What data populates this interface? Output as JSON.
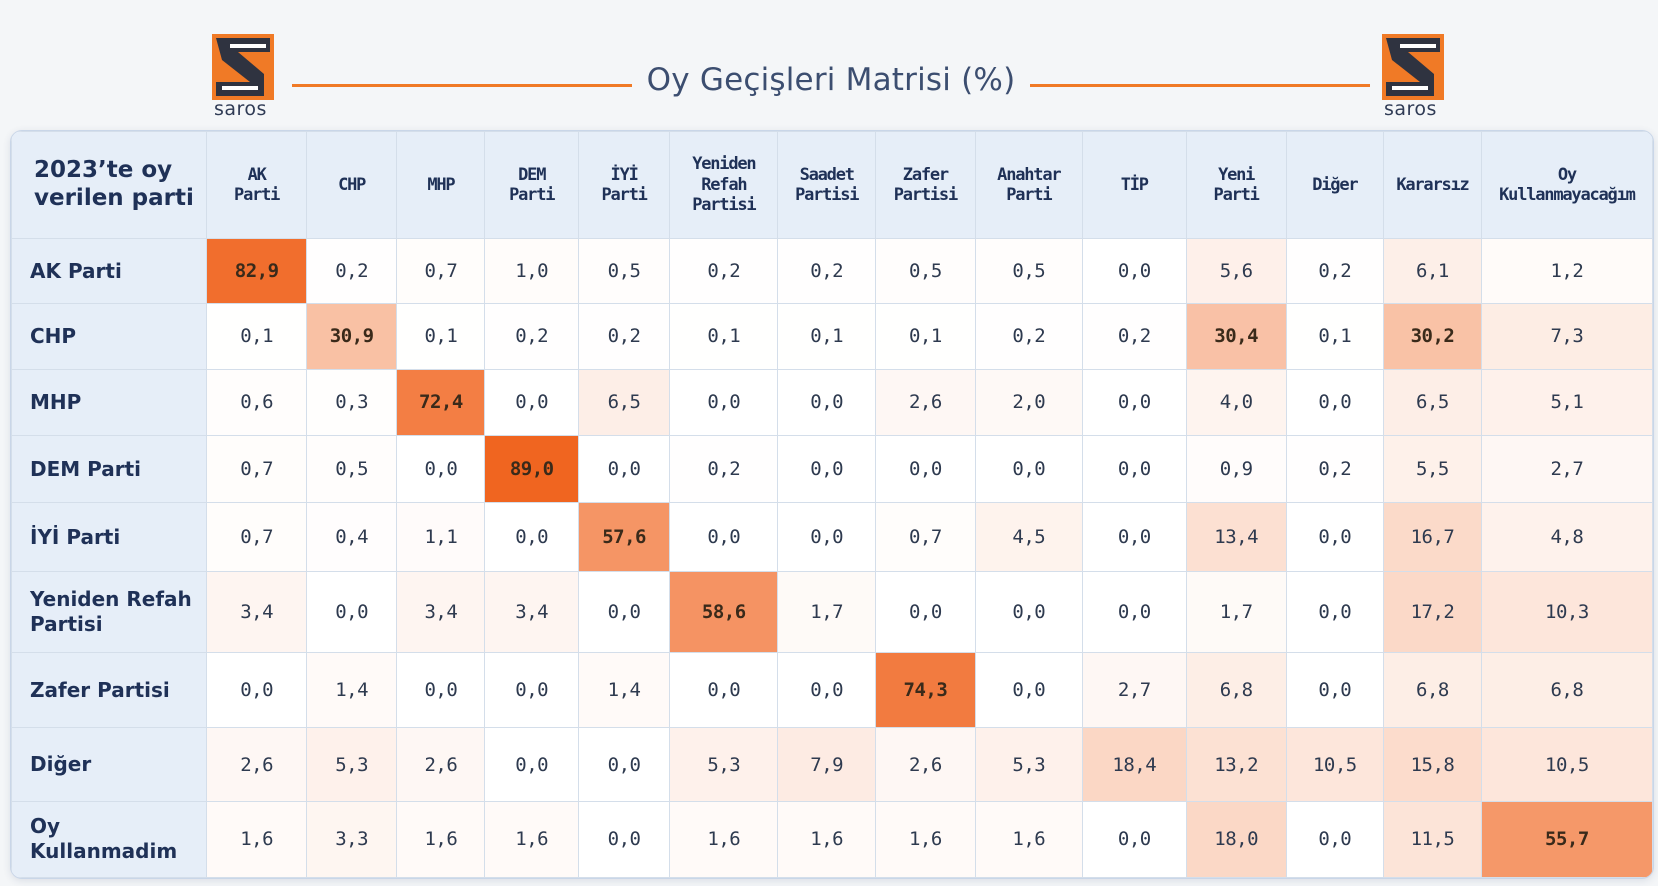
{
  "brand": {
    "name": "saros",
    "colors": {
      "orange": "#f07a26",
      "dark": "#2f3340"
    }
  },
  "title": "Oy Geçişleri Matrisi (%)",
  "chart_data": {
    "type": "heatmap",
    "title": "Oy Geçişleri Matrisi (%)",
    "corner_label": "2023’te oy\nverilen parti",
    "columns": [
      "AK\nParti",
      "CHP",
      "MHP",
      "DEM\nParti",
      "İYİ\nParti",
      "Yeniden\nRefah\nPartisi",
      "Saadet\nPartisi",
      "Zafer\nPartisi",
      "Anahtar\nParti",
      "TİP",
      "Yeni\nParti",
      "Diğer",
      "Kararsız",
      "Oy\nKullanmayacağım"
    ],
    "rows": [
      {
        "label": "AK Parti",
        "values": [
          "82,9",
          "0,2",
          "0,7",
          "1,0",
          "0,5",
          "0,2",
          "0,2",
          "0,5",
          "0,5",
          "0,0",
          "5,6",
          "0,2",
          "6,1",
          "1,2"
        ]
      },
      {
        "label": "CHP",
        "values": [
          "0,1",
          "30,9",
          "0,1",
          "0,2",
          "0,2",
          "0,1",
          "0,1",
          "0,1",
          "0,2",
          "0,2",
          "30,4",
          "0,1",
          "30,2",
          "7,3"
        ]
      },
      {
        "label": "MHP",
        "values": [
          "0,6",
          "0,3",
          "72,4",
          "0,0",
          "6,5",
          "0,0",
          "0,0",
          "2,6",
          "2,0",
          "0,0",
          "4,0",
          "0,0",
          "6,5",
          "5,1"
        ]
      },
      {
        "label": "DEM Parti",
        "values": [
          "0,7",
          "0,5",
          "0,0",
          "89,0",
          "0,0",
          "0,2",
          "0,0",
          "0,0",
          "0,0",
          "0,0",
          "0,9",
          "0,2",
          "5,5",
          "2,7"
        ]
      },
      {
        "label": "İYİ Parti",
        "values": [
          "0,7",
          "0,4",
          "1,1",
          "0,0",
          "57,6",
          "0,0",
          "0,0",
          "0,7",
          "4,5",
          "0,0",
          "13,4",
          "0,0",
          "16,7",
          "4,8"
        ]
      },
      {
        "label": "Yeniden Refah\nPartisi",
        "values": [
          "3,4",
          "0,0",
          "3,4",
          "3,4",
          "0,0",
          "58,6",
          "1,7",
          "0,0",
          "0,0",
          "0,0",
          "1,7",
          "0,0",
          "17,2",
          "10,3"
        ]
      },
      {
        "label": "Zafer Partisi",
        "values": [
          "0,0",
          "1,4",
          "0,0",
          "0,0",
          "1,4",
          "0,0",
          "0,0",
          "74,3",
          "0,0",
          "2,7",
          "6,8",
          "0,0",
          "6,8",
          "6,8"
        ]
      },
      {
        "label": "Diğer",
        "values": [
          "2,6",
          "5,3",
          "2,6",
          "0,0",
          "0,0",
          "5,3",
          "7,9",
          "2,6",
          "5,3",
          "18,4",
          "13,2",
          "10,5",
          "15,8",
          "10,5"
        ]
      },
      {
        "label": "Oy Kullanmadim",
        "values": [
          "1,6",
          "3,3",
          "1,6",
          "1,6",
          "0,0",
          "1,6",
          "1,6",
          "1,6",
          "1,6",
          "0,0",
          "18,0",
          "0,0",
          "11,5",
          "55,7"
        ]
      }
    ],
    "color_scale": {
      "low": "#ffffff",
      "high": "#f0641e",
      "max": 90
    },
    "bold_threshold": 25
  }
}
